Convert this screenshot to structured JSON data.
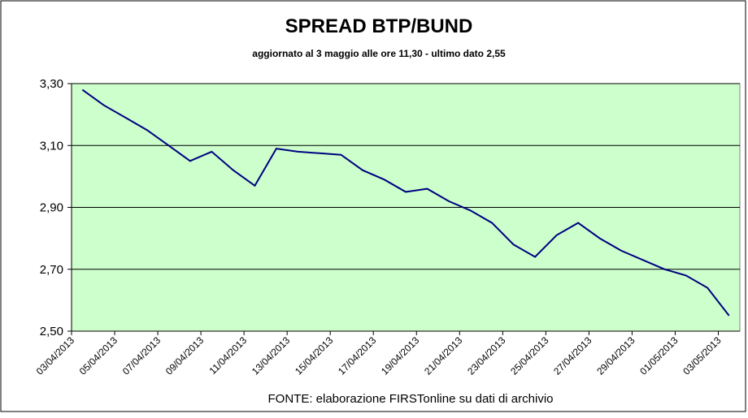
{
  "chart_data": {
    "type": "line",
    "title": "SPREAD  BTP/BUND",
    "subtitle": "aggiornato al 3 maggio alle ore 11,30 - ultimo dato 2,55",
    "source": "FONTE: elaborazione FIRSTonline su dati di archivio",
    "categories": [
      "03/04/2013",
      null,
      "05/04/2013",
      null,
      "07/04/2013",
      null,
      "09/04/2013",
      null,
      "11/04/2013",
      null,
      "13/04/2013",
      null,
      "15/04/2013",
      null,
      "17/04/2013",
      null,
      "19/04/2013",
      null,
      "21/04/2013",
      null,
      "23/04/2013",
      null,
      "25/04/2013",
      null,
      "27/04/2013",
      null,
      "29/04/2013",
      null,
      "01/05/2013",
      null,
      "03/05/2013"
    ],
    "series": [
      {
        "name": "Spread",
        "color": "#000080",
        "values": [
          3.28,
          3.23,
          3.19,
          3.15,
          3.1,
          3.05,
          3.08,
          3.02,
          2.97,
          3.09,
          3.08,
          3.075,
          3.07,
          3.02,
          2.99,
          2.95,
          2.96,
          2.92,
          2.89,
          2.85,
          2.78,
          2.74,
          2.81,
          2.85,
          2.8,
          2.76,
          2.73,
          2.7,
          2.68,
          2.64,
          2.55
        ]
      }
    ],
    "ylim": [
      2.5,
      3.3
    ],
    "yticks": [
      {
        "value": 2.5,
        "label": "2,50"
      },
      {
        "value": 2.7,
        "label": "2,70"
      },
      {
        "value": 2.9,
        "label": "2,90"
      },
      {
        "value": 3.1,
        "label": "3,10"
      },
      {
        "value": 3.3,
        "label": "3,30"
      }
    ],
    "grid": true,
    "plot_background": "#ccffcc"
  }
}
